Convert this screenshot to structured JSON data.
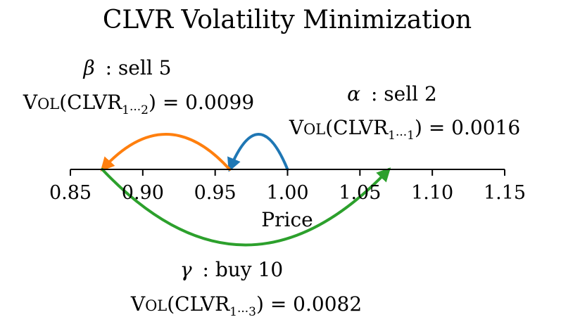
{
  "title": "CLVR Volatility Minimization",
  "axis": {
    "xlabel": "Price",
    "ticks": [
      "0.85",
      "0.90",
      "0.95",
      "1.00",
      "1.05",
      "1.10",
      "1.15"
    ],
    "range": [
      0.85,
      1.15
    ]
  },
  "colors": {
    "alpha": "#1f77b4",
    "beta": "#ff7f0e",
    "gamma": "#2ca02c",
    "axis": "#000000"
  },
  "trades": [
    {
      "id": "alpha",
      "symbol": "α",
      "action": ": sell 2",
      "vol_prefix_first": "V",
      "vol_prefix_rest": "OL",
      "vol_func": "(CLVR",
      "vol_sub": "1···1",
      "vol_value": ") = 0.0016",
      "from_price": 1.0,
      "to_price": 0.96
    },
    {
      "id": "beta",
      "symbol": "β",
      "action": ": sell 5",
      "vol_prefix_first": "V",
      "vol_prefix_rest": "OL",
      "vol_func": "(CLVR",
      "vol_sub": "1···2",
      "vol_value": ") = 0.0099",
      "from_price": 0.96,
      "to_price": 0.872
    },
    {
      "id": "gamma",
      "symbol": "γ",
      "action": ": buy 10",
      "vol_prefix_first": "V",
      "vol_prefix_rest": "OL",
      "vol_func": "(CLVR",
      "vol_sub": "1···3",
      "vol_value": ") = 0.0082",
      "from_price": 0.872,
      "to_price": 1.07
    }
  ]
}
